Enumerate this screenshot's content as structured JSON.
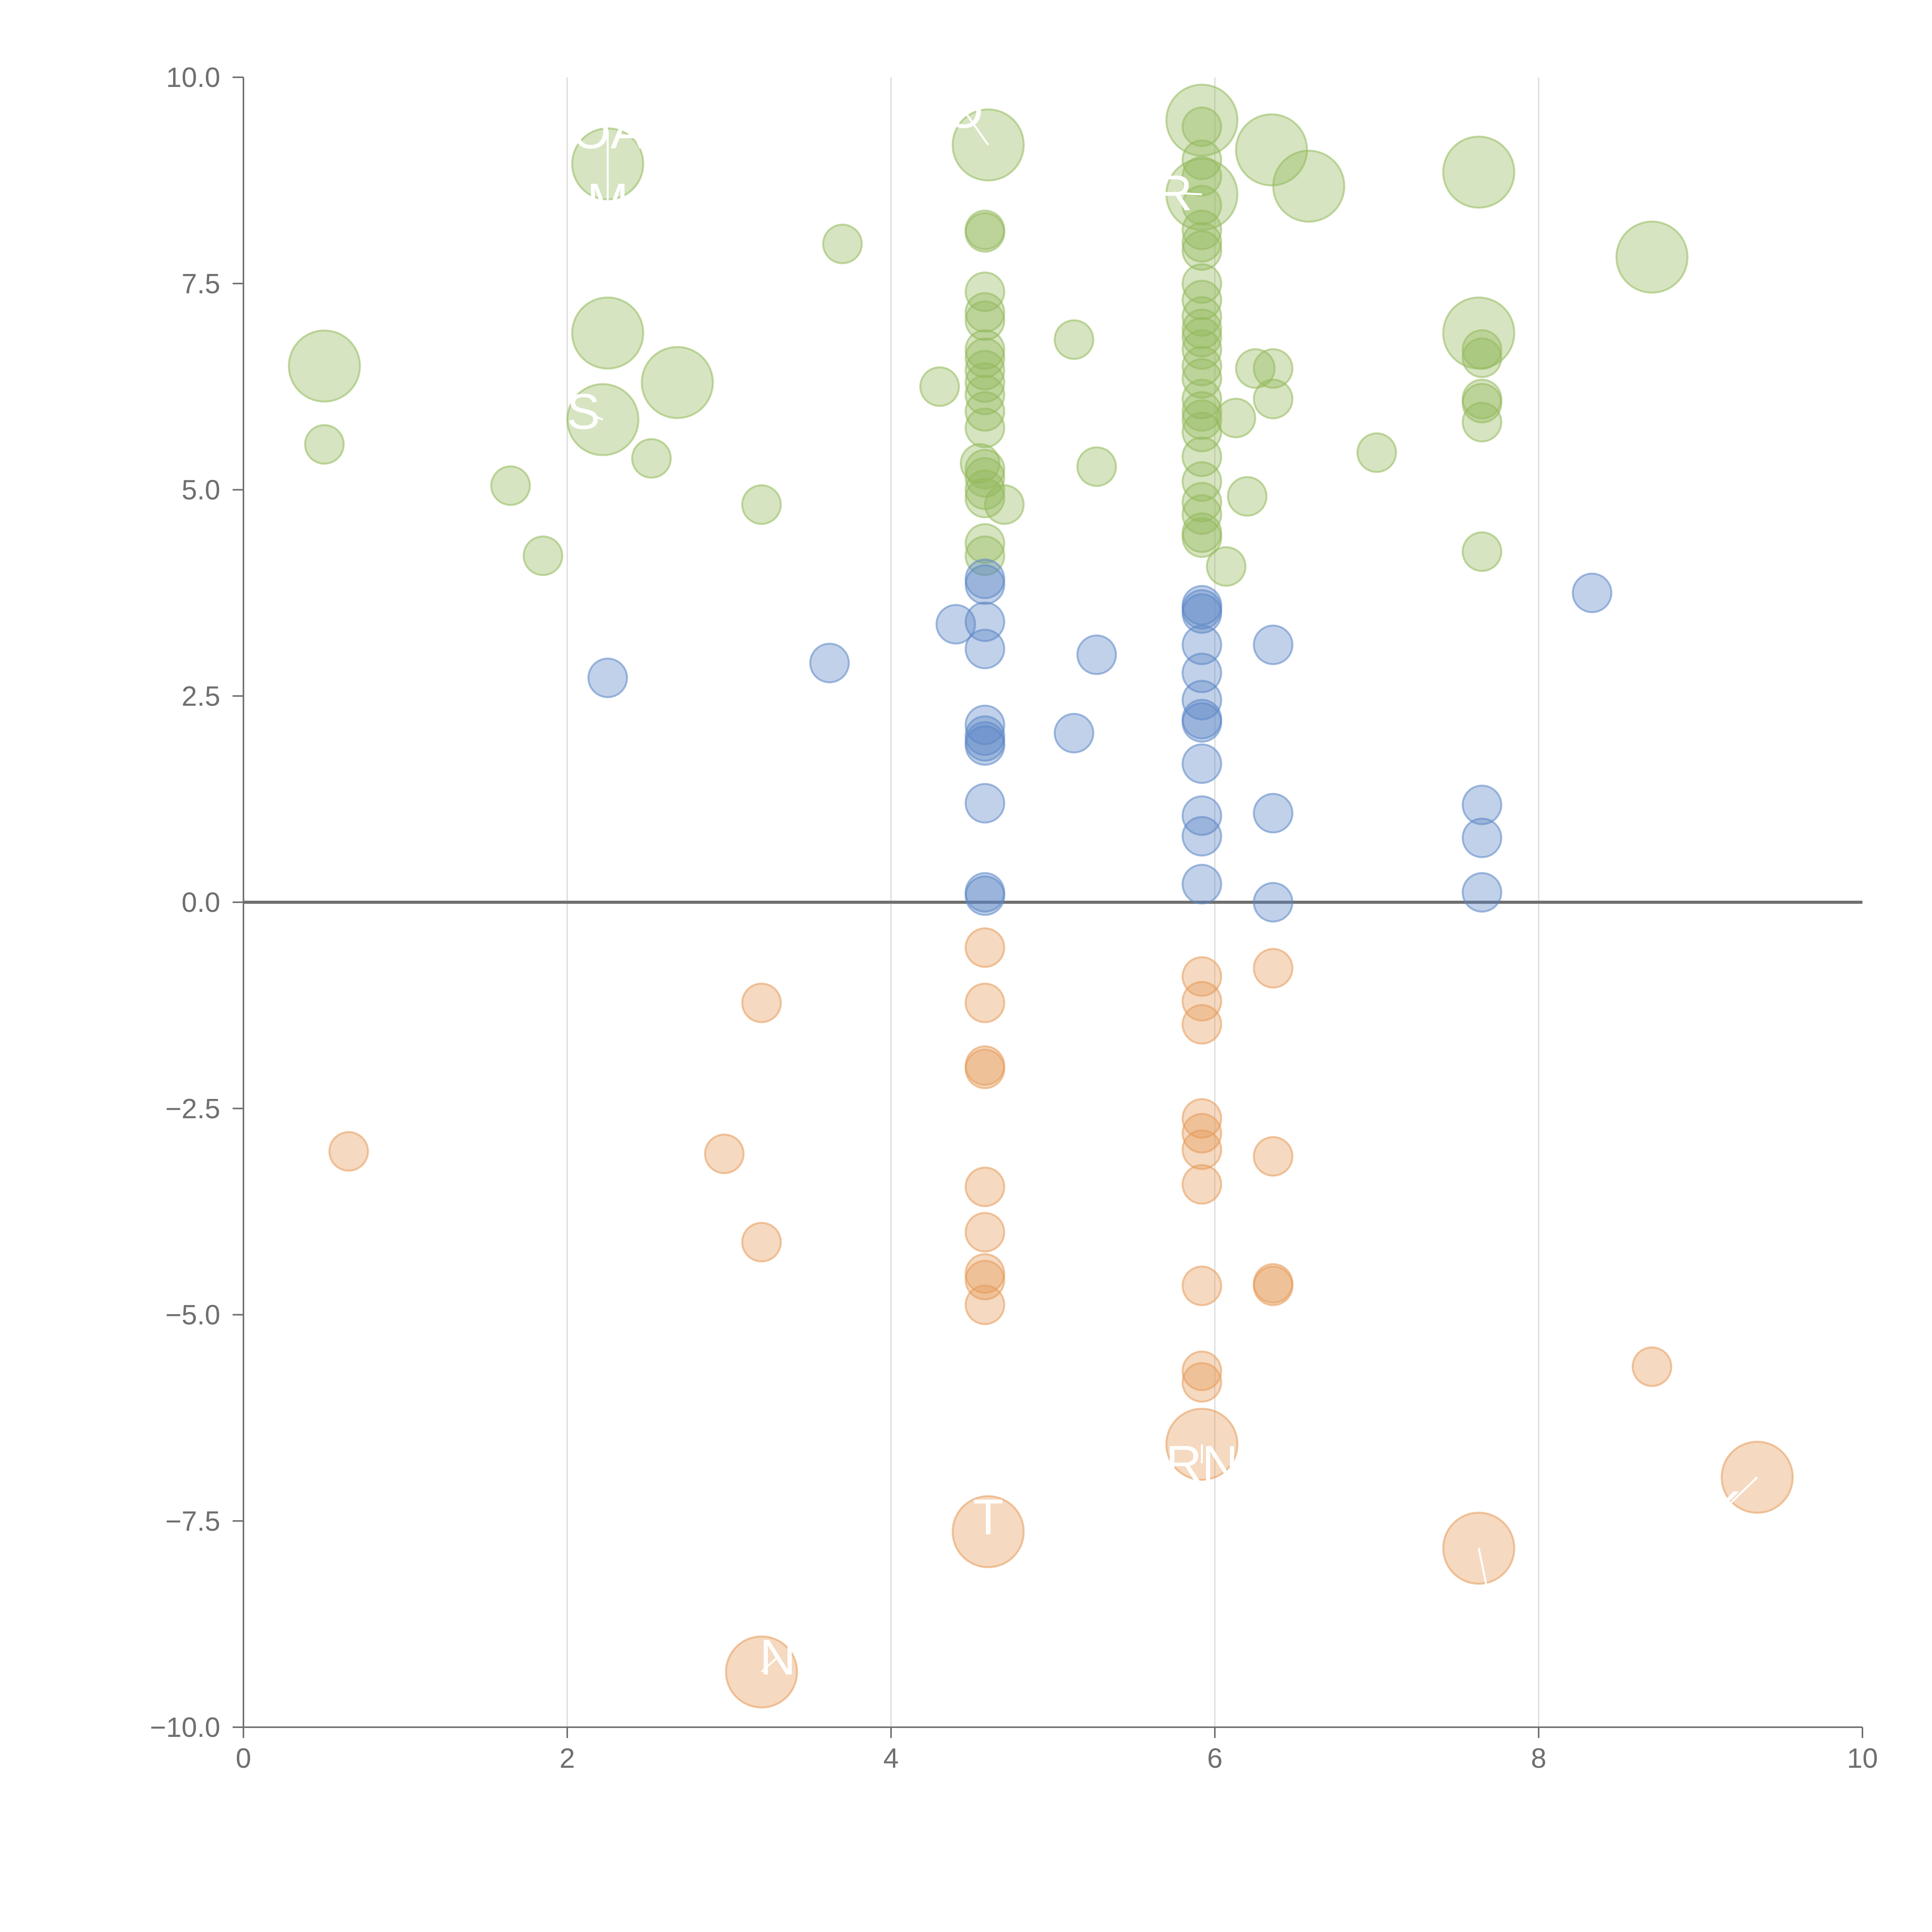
{
  "chart_data": {
    "type": "scatter",
    "title": "",
    "xlabel": "",
    "ylabel": "",
    "xlim": [
      0,
      10
    ],
    "ylim": [
      -10,
      10
    ],
    "grid": "vertical",
    "reference_line_y": 0,
    "x_ticks": [
      "0",
      "2",
      "4",
      "6",
      "8",
      "10"
    ],
    "y_ticks": [
      "10.0",
      "7.5",
      "5.0",
      "2.5",
      "0.0",
      "−2.5",
      "−5.0",
      "−7.5",
      "−10.0"
    ],
    "colors": {
      "positive": "#93b95b",
      "neutral": "#5b86c6",
      "negative": "#e59a5a",
      "axis": "#6f6f6f",
      "grid": "#d9d9d9"
    },
    "series": [
      {
        "name": "positive",
        "points": [
          {
            "x": 0.5,
            "y": 6.5,
            "size": "large"
          },
          {
            "x": 0.5,
            "y": 5.55
          },
          {
            "x": 1.65,
            "y": 5.05
          },
          {
            "x": 1.85,
            "y": 4.2
          },
          {
            "x": 2.25,
            "y": 8.95,
            "size": "large"
          },
          {
            "x": 2.25,
            "y": 6.9,
            "size": "large"
          },
          {
            "x": 2.22,
            "y": 5.85,
            "size": "large"
          },
          {
            "x": 2.68,
            "y": 6.3,
            "size": "large"
          },
          {
            "x": 2.52,
            "y": 5.38
          },
          {
            "x": 3.2,
            "y": 4.82
          },
          {
            "x": 3.7,
            "y": 7.98
          },
          {
            "x": 4.3,
            "y": 6.25
          },
          {
            "x": 4.6,
            "y": 9.18,
            "size": "large"
          },
          {
            "x": 4.58,
            "y": 8.15
          },
          {
            "x": 4.58,
            "y": 8.12
          },
          {
            "x": 4.58,
            "y": 7.4
          },
          {
            "x": 4.58,
            "y": 7.15
          },
          {
            "x": 4.58,
            "y": 7.05
          },
          {
            "x": 4.58,
            "y": 6.7
          },
          {
            "x": 4.58,
            "y": 6.6
          },
          {
            "x": 4.58,
            "y": 6.45
          },
          {
            "x": 4.58,
            "y": 6.3
          },
          {
            "x": 4.58,
            "y": 6.15
          },
          {
            "x": 4.58,
            "y": 5.95
          },
          {
            "x": 4.58,
            "y": 5.75
          },
          {
            "x": 4.55,
            "y": 5.32
          },
          {
            "x": 4.58,
            "y": 5.25
          },
          {
            "x": 4.58,
            "y": 5.15
          },
          {
            "x": 4.58,
            "y": 5.0
          },
          {
            "x": 4.58,
            "y": 4.9
          },
          {
            "x": 4.7,
            "y": 4.82
          },
          {
            "x": 4.58,
            "y": 4.35
          },
          {
            "x": 4.58,
            "y": 4.2
          },
          {
            "x": 5.13,
            "y": 6.82
          },
          {
            "x": 5.27,
            "y": 5.28
          },
          {
            "x": 5.92,
            "y": 9.48,
            "size": "large"
          },
          {
            "x": 5.92,
            "y": 8.58,
            "size": "large"
          },
          {
            "x": 5.92,
            "y": 9.4
          },
          {
            "x": 5.92,
            "y": 9.0
          },
          {
            "x": 5.92,
            "y": 8.8
          },
          {
            "x": 5.92,
            "y": 8.45
          },
          {
            "x": 5.92,
            "y": 8.15
          },
          {
            "x": 5.92,
            "y": 8.0
          },
          {
            "x": 5.92,
            "y": 7.9
          },
          {
            "x": 5.92,
            "y": 7.5
          },
          {
            "x": 5.92,
            "y": 7.3
          },
          {
            "x": 5.92,
            "y": 7.1
          },
          {
            "x": 5.92,
            "y": 6.95
          },
          {
            "x": 5.92,
            "y": 6.85
          },
          {
            "x": 5.92,
            "y": 6.7
          },
          {
            "x": 5.92,
            "y": 6.5
          },
          {
            "x": 5.92,
            "y": 6.35
          },
          {
            "x": 5.92,
            "y": 6.1
          },
          {
            "x": 5.92,
            "y": 5.95
          },
          {
            "x": 5.92,
            "y": 5.85
          },
          {
            "x": 5.92,
            "y": 5.7
          },
          {
            "x": 5.92,
            "y": 5.4
          },
          {
            "x": 5.92,
            "y": 5.1
          },
          {
            "x": 5.92,
            "y": 4.85
          },
          {
            "x": 5.92,
            "y": 4.7
          },
          {
            "x": 5.92,
            "y": 4.48
          },
          {
            "x": 5.92,
            "y": 4.42
          },
          {
            "x": 6.07,
            "y": 4.07
          },
          {
            "x": 6.13,
            "y": 5.87
          },
          {
            "x": 6.2,
            "y": 4.92
          },
          {
            "x": 6.25,
            "y": 6.47
          },
          {
            "x": 6.35,
            "y": 9.12,
            "size": "large"
          },
          {
            "x": 6.58,
            "y": 8.68,
            "size": "large"
          },
          {
            "x": 6.36,
            "y": 6.47
          },
          {
            "x": 6.36,
            "y": 6.1
          },
          {
            "x": 7.0,
            "y": 5.45
          },
          {
            "x": 7.63,
            "y": 8.85,
            "size": "large"
          },
          {
            "x": 7.63,
            "y": 6.9,
            "size": "large"
          },
          {
            "x": 7.65,
            "y": 6.7
          },
          {
            "x": 7.65,
            "y": 6.6
          },
          {
            "x": 7.65,
            "y": 6.1
          },
          {
            "x": 7.65,
            "y": 6.05
          },
          {
            "x": 7.65,
            "y": 5.82
          },
          {
            "x": 7.65,
            "y": 4.25
          },
          {
            "x": 8.7,
            "y": 7.82,
            "size": "large"
          }
        ]
      },
      {
        "name": "neutral",
        "points": [
          {
            "x": 2.25,
            "y": 2.72
          },
          {
            "x": 3.62,
            "y": 2.9
          },
          {
            "x": 4.4,
            "y": 3.37
          },
          {
            "x": 4.58,
            "y": 3.92
          },
          {
            "x": 4.58,
            "y": 3.85
          },
          {
            "x": 4.58,
            "y": 3.4
          },
          {
            "x": 4.58,
            "y": 3.07
          },
          {
            "x": 4.58,
            "y": 2.15
          },
          {
            "x": 4.58,
            "y": 2.02
          },
          {
            "x": 4.58,
            "y": 1.95
          },
          {
            "x": 4.58,
            "y": 1.9
          },
          {
            "x": 4.58,
            "y": 1.2
          },
          {
            "x": 4.58,
            "y": 0.12
          },
          {
            "x": 4.58,
            "y": 0.08
          },
          {
            "x": 5.13,
            "y": 2.05
          },
          {
            "x": 5.27,
            "y": 3.0
          },
          {
            "x": 5.92,
            "y": 3.6
          },
          {
            "x": 5.92,
            "y": 3.55
          },
          {
            "x": 5.92,
            "y": 3.5
          },
          {
            "x": 5.92,
            "y": 3.12
          },
          {
            "x": 5.92,
            "y": 2.78
          },
          {
            "x": 5.92,
            "y": 2.45
          },
          {
            "x": 5.92,
            "y": 2.22
          },
          {
            "x": 5.92,
            "y": 2.18
          },
          {
            "x": 5.92,
            "y": 1.68
          },
          {
            "x": 5.92,
            "y": 1.05
          },
          {
            "x": 5.92,
            "y": 0.8
          },
          {
            "x": 5.92,
            "y": 0.22
          },
          {
            "x": 6.36,
            "y": 3.12
          },
          {
            "x": 6.36,
            "y": 1.08
          },
          {
            "x": 6.36,
            "y": 0.0
          },
          {
            "x": 7.65,
            "y": 1.18
          },
          {
            "x": 7.65,
            "y": 0.78
          },
          {
            "x": 7.65,
            "y": 0.12
          },
          {
            "x": 8.33,
            "y": 3.75
          }
        ]
      },
      {
        "name": "negative",
        "points": [
          {
            "x": 0.65,
            "y": -3.02
          },
          {
            "x": 2.97,
            "y": -3.05
          },
          {
            "x": 3.2,
            "y": -1.22
          },
          {
            "x": 3.2,
            "y": -4.12
          },
          {
            "x": 3.2,
            "y": -9.33,
            "size": "large"
          },
          {
            "x": 4.58,
            "y": -0.55
          },
          {
            "x": 4.58,
            "y": -1.22
          },
          {
            "x": 4.58,
            "y": -1.98
          },
          {
            "x": 4.58,
            "y": -2.02
          },
          {
            "x": 4.58,
            "y": -3.45
          },
          {
            "x": 4.58,
            "y": -4.0
          },
          {
            "x": 4.58,
            "y": -4.5
          },
          {
            "x": 4.58,
            "y": -4.58
          },
          {
            "x": 4.58,
            "y": -4.88
          },
          {
            "x": 4.6,
            "y": -7.63,
            "size": "large"
          },
          {
            "x": 5.92,
            "y": -0.9
          },
          {
            "x": 5.92,
            "y": -1.2
          },
          {
            "x": 5.92,
            "y": -1.48
          },
          {
            "x": 5.92,
            "y": -2.62
          },
          {
            "x": 5.92,
            "y": -2.8
          },
          {
            "x": 5.92,
            "y": -3.0
          },
          {
            "x": 5.92,
            "y": -3.42
          },
          {
            "x": 5.92,
            "y": -4.65
          },
          {
            "x": 5.92,
            "y": -5.68
          },
          {
            "x": 5.92,
            "y": -5.82
          },
          {
            "x": 5.92,
            "y": -6.57,
            "size": "large"
          },
          {
            "x": 6.36,
            "y": -0.8
          },
          {
            "x": 6.36,
            "y": -3.08
          },
          {
            "x": 6.36,
            "y": -4.62
          },
          {
            "x": 6.36,
            "y": -4.65
          },
          {
            "x": 7.63,
            "y": -7.83,
            "size": "large"
          },
          {
            "x": 8.7,
            "y": -5.63
          },
          {
            "x": 9.35,
            "y": -6.97,
            "size": "large"
          }
        ]
      }
    ],
    "annotations": [
      {
        "text": "OA",
        "x": 2.25,
        "y": 8.95,
        "label_x": 2.25,
        "label_y": 9.35
      },
      {
        "text": "M",
        "x": 2.25,
        "y": 8.95,
        "label_x": 2.25,
        "label_y": 8.5
      },
      {
        "text": "S",
        "x": 2.22,
        "y": 5.85,
        "label_x": 2.1,
        "label_y": 5.95
      },
      {
        "text": "O",
        "x": 4.6,
        "y": 9.18,
        "label_x": 4.45,
        "label_y": 9.6
      },
      {
        "text": "R",
        "x": 5.92,
        "y": 8.58,
        "label_x": 5.75,
        "label_y": 8.6
      },
      {
        "text": "RN",
        "x": 5.92,
        "y": -6.57,
        "label_x": 5.92,
        "label_y": -6.8
      },
      {
        "text": "T",
        "x": 4.6,
        "y": -7.63,
        "label_x": 4.6,
        "label_y": -7.45
      },
      {
        "text": "N",
        "x": 3.2,
        "y": -9.33,
        "label_x": 3.3,
        "label_y": -9.15
      },
      {
        "text": "OL",
        "x": 7.63,
        "y": -7.83,
        "label_x": 7.7,
        "label_y": -8.5
      },
      {
        "text": "K",
        "x": 9.35,
        "y": -6.97,
        "label_x": 9.15,
        "label_y": -7.35
      }
    ]
  }
}
